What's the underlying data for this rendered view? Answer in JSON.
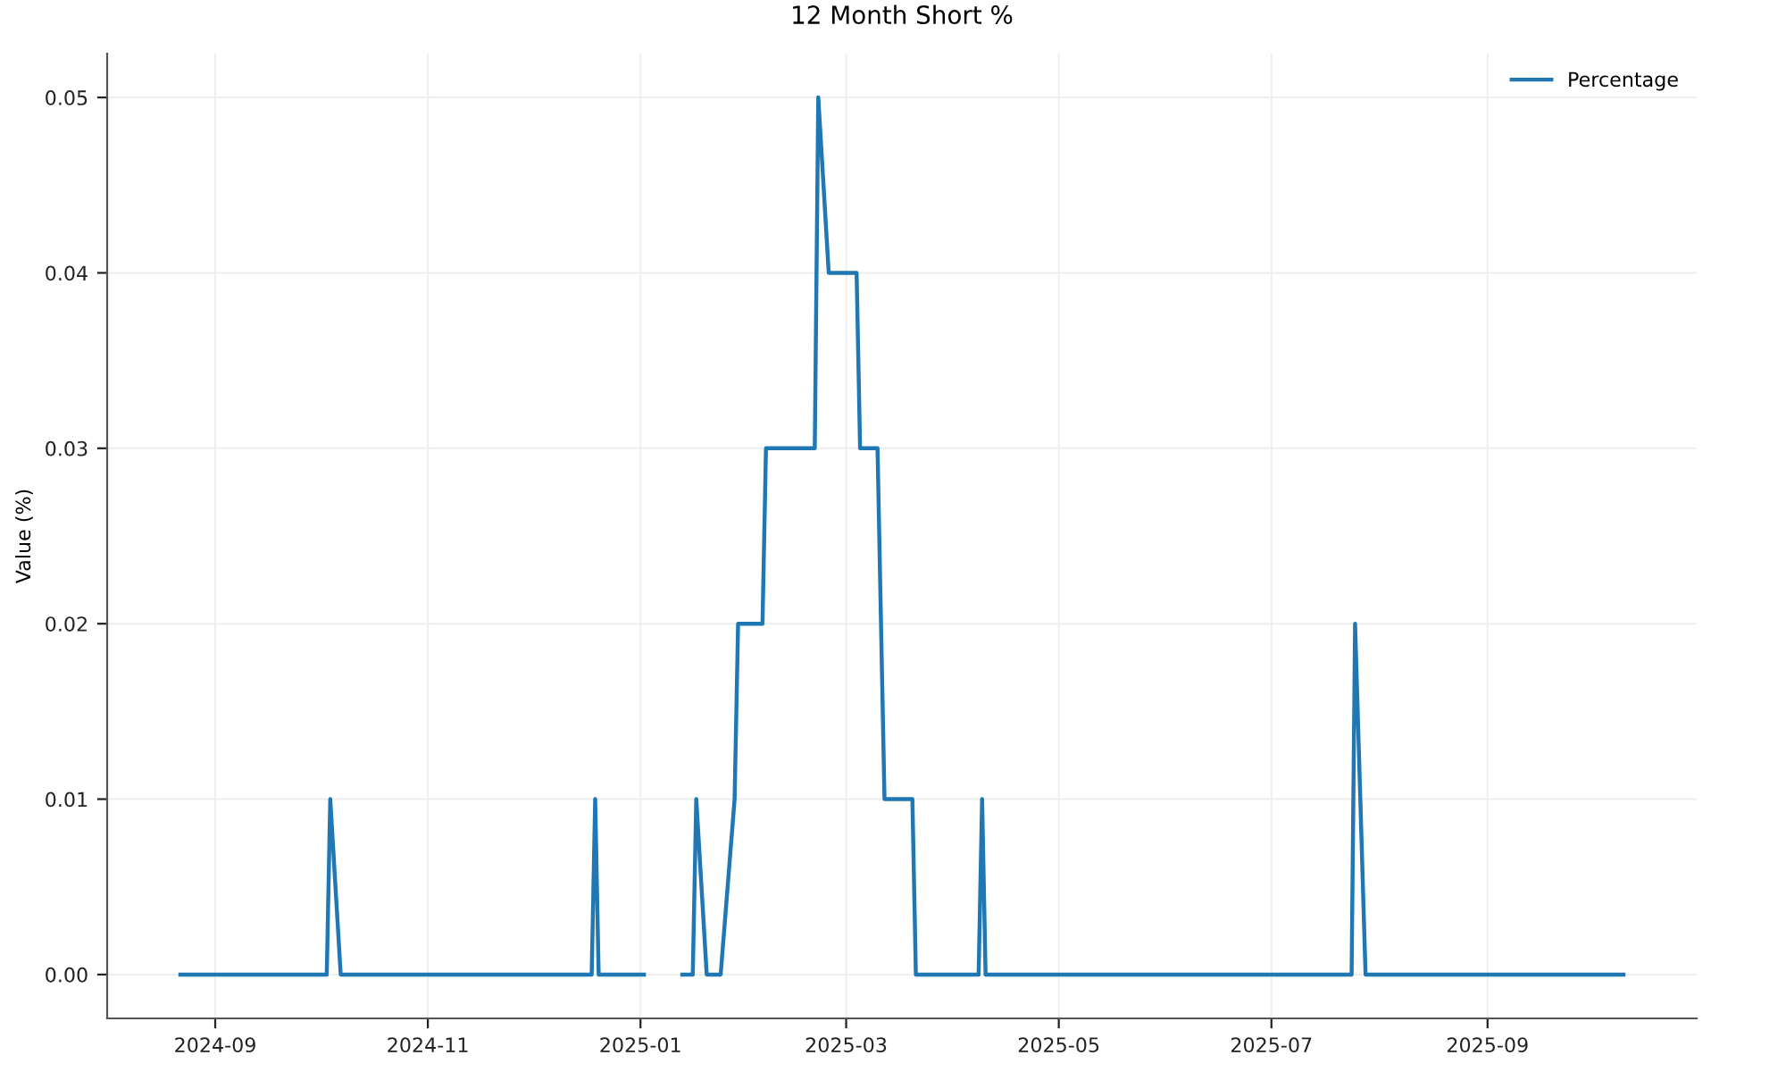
{
  "chart_data": {
    "type": "line",
    "title": "12 Month Short %",
    "ylabel": "Value (%)",
    "series": [
      {
        "name": "Percentage",
        "color": "#1f77b4",
        "x": [
          "2024-08-22",
          "2024-10-03",
          "2024-10-04",
          "2024-10-07",
          "2024-12-18",
          "2024-12-19",
          "2024-12-20",
          "2025-01-02",
          "2025-01-08",
          "2025-01-13",
          "2025-01-16",
          "2025-01-17",
          "2025-01-20",
          "2025-01-24",
          "2025-01-28",
          "2025-01-29",
          "2025-02-05",
          "2025-02-06",
          "2025-02-20",
          "2025-02-21",
          "2025-02-24",
          "2025-03-04",
          "2025-03-05",
          "2025-03-10",
          "2025-03-12",
          "2025-03-20",
          "2025-03-21",
          "2025-04-08",
          "2025-04-09",
          "2025-04-10",
          "2025-07-24",
          "2025-07-25",
          "2025-07-28",
          "2025-10-10"
        ],
        "values": [
          0,
          0,
          0.01,
          0,
          0,
          0.01,
          0,
          0,
          null,
          0,
          0,
          0.01,
          0,
          0,
          0.01,
          0.02,
          0.02,
          0.03,
          0.03,
          0.05,
          0.04,
          0.04,
          0.03,
          0.03,
          0.01,
          0.01,
          0,
          0,
          0.01,
          0,
          0,
          0.02,
          0,
          0
        ]
      }
    ],
    "xlim": [
      "2024-08-01",
      "2025-10-31"
    ],
    "xticks": [
      {
        "value": "2024-09-01",
        "label": "2024-09"
      },
      {
        "value": "2024-11-01",
        "label": "2024-11"
      },
      {
        "value": "2025-01-01",
        "label": "2025-01"
      },
      {
        "value": "2025-03-01",
        "label": "2025-03"
      },
      {
        "value": "2025-05-01",
        "label": "2025-05"
      },
      {
        "value": "2025-07-01",
        "label": "2025-07"
      },
      {
        "value": "2025-09-01",
        "label": "2025-09"
      }
    ],
    "ylim": [
      -0.0025,
      0.0525
    ],
    "yticks": [
      {
        "value": 0,
        "label": "0.00"
      },
      0.01,
      0.02,
      0.03,
      0.04,
      0.05
    ],
    "grid": true,
    "legend": "top right",
    "marker": "none",
    "line_style": "solid"
  }
}
